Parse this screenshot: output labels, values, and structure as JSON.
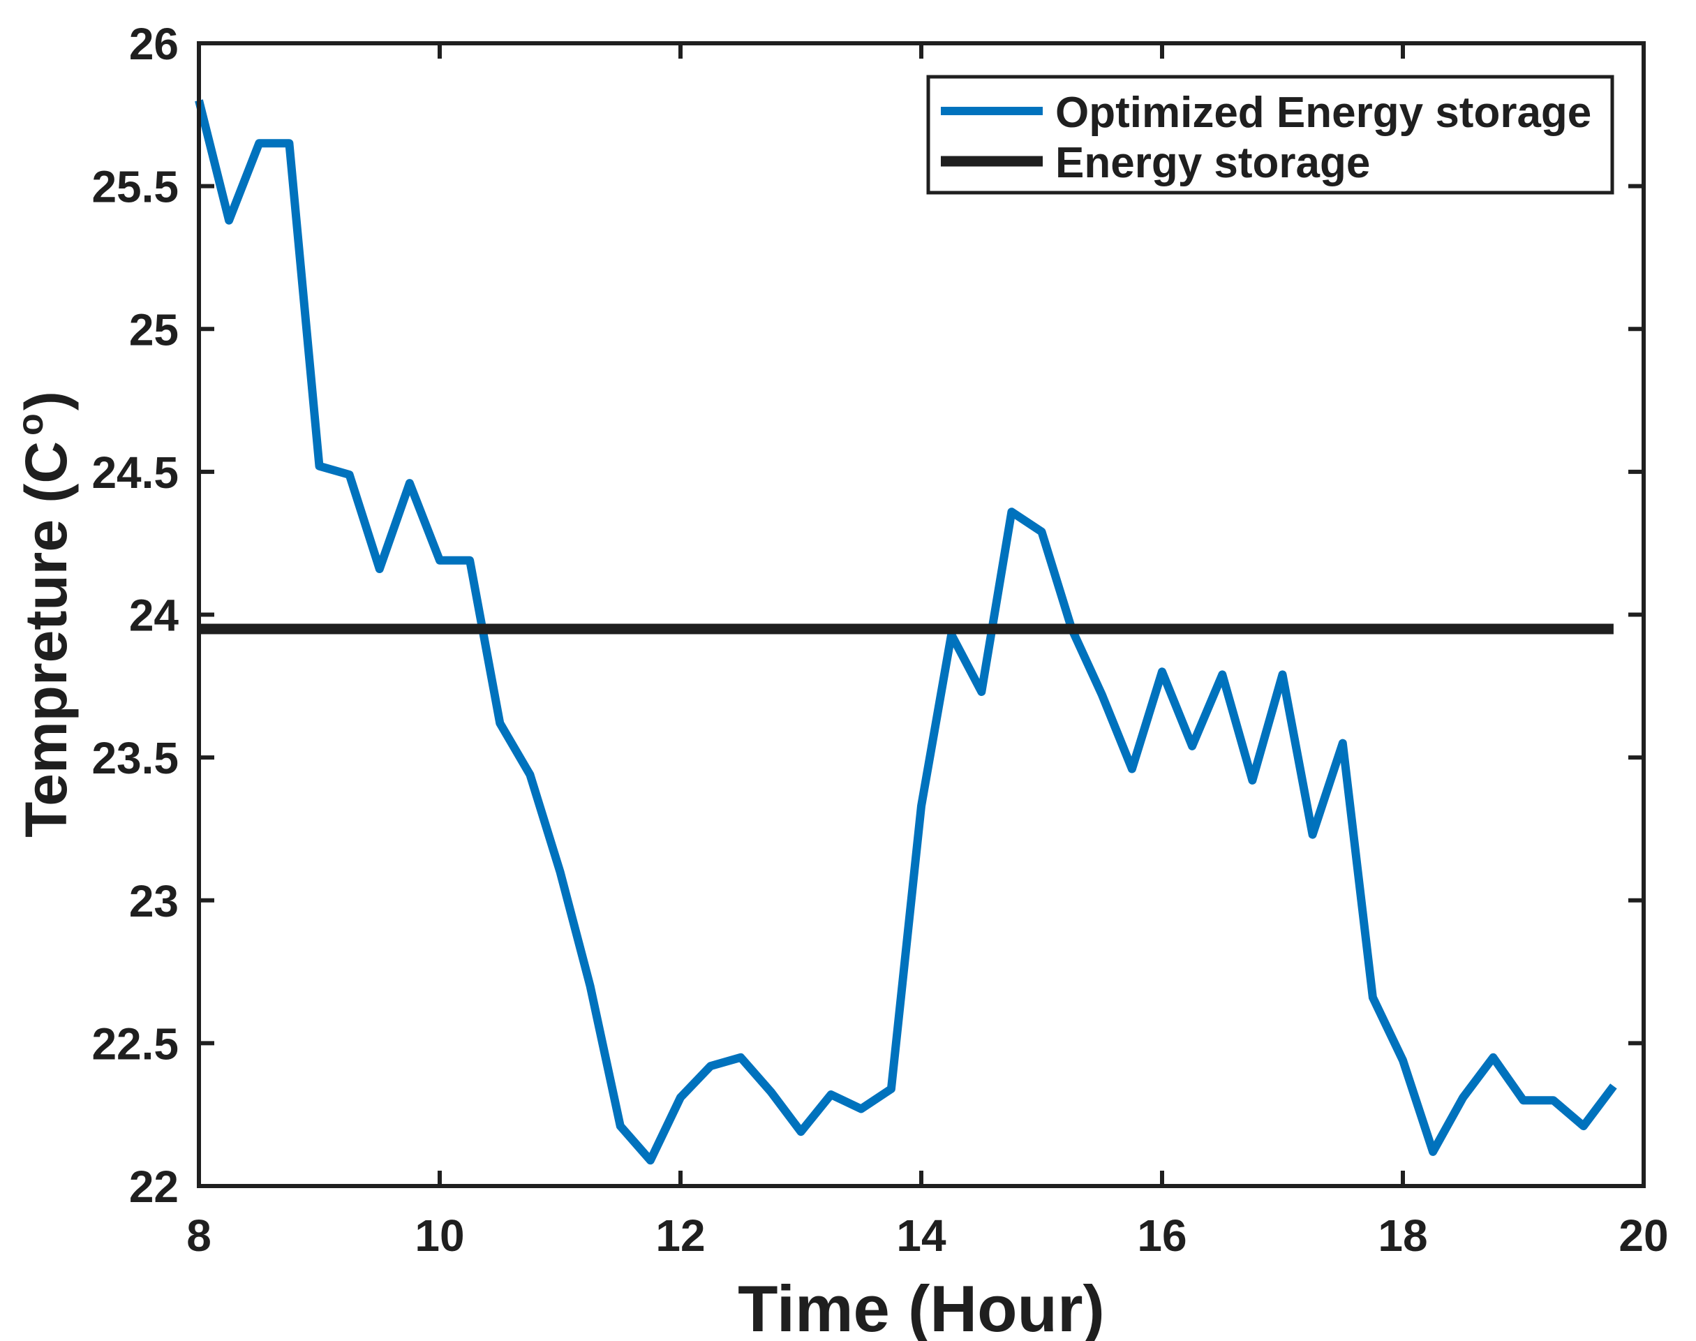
{
  "figure": {
    "background": "#ffffff",
    "axis_color": "#1f1f1f"
  },
  "chart_data": {
    "type": "line",
    "title": "",
    "xlabel": "Time (Hour)",
    "ylabel_main": "Tempreture (C",
    "ylabel_superscript": "o",
    "ylabel_suffix": ")",
    "xlim": [
      8,
      20
    ],
    "ylim": [
      22,
      26
    ],
    "grid": false,
    "legend_position": "top-right",
    "xticks": {
      "values": [
        8,
        10,
        12,
        14,
        16,
        18,
        20
      ],
      "labels": [
        "8",
        "10",
        "12",
        "14",
        "16",
        "18",
        "20"
      ]
    },
    "yticks": {
      "values": [
        22,
        22.5,
        23,
        23.5,
        24,
        24.5,
        25,
        25.5,
        26
      ],
      "labels": [
        "22",
        "22.5",
        "23",
        "23.5",
        "24",
        "24.5",
        "25",
        "25.5",
        "26"
      ]
    },
    "x": [
      8.0,
      8.25,
      8.5,
      8.75,
      9.0,
      9.25,
      9.5,
      9.75,
      10.0,
      10.25,
      10.5,
      10.75,
      11.0,
      11.25,
      11.5,
      11.75,
      12.0,
      12.25,
      12.5,
      12.75,
      13.0,
      13.25,
      13.5,
      13.75,
      14.0,
      14.25,
      14.5,
      14.75,
      15.0,
      15.25,
      15.5,
      15.75,
      16.0,
      16.25,
      16.5,
      16.75,
      17.0,
      17.25,
      17.5,
      17.75,
      18.0,
      18.25,
      18.5,
      18.75,
      19.0,
      19.25,
      19.5,
      19.75
    ],
    "series": [
      {
        "name": "Optimized Energy storage",
        "color": "#0072BD",
        "line_width": 12,
        "values": [
          25.8,
          25.38,
          25.65,
          25.65,
          24.52,
          24.49,
          24.16,
          24.46,
          24.19,
          24.19,
          23.62,
          23.44,
          23.1,
          22.7,
          22.21,
          22.09,
          22.31,
          22.42,
          22.45,
          22.33,
          22.19,
          22.32,
          22.27,
          22.34,
          23.33,
          23.93,
          23.73,
          24.36,
          24.29,
          23.95,
          23.72,
          23.46,
          23.8,
          23.54,
          23.79,
          23.42,
          23.79,
          23.23,
          23.55,
          22.66,
          22.44,
          22.12,
          22.31,
          22.45,
          22.3,
          22.3,
          22.21,
          22.35
        ]
      },
      {
        "name": "Energy storage",
        "color": "#1f1f1f",
        "line_width": 15,
        "values": [
          23.95,
          23.95,
          23.95,
          23.95,
          23.95,
          23.95,
          23.95,
          23.95,
          23.95,
          23.95,
          23.95,
          23.95,
          23.95,
          23.95,
          23.95,
          23.95,
          23.95,
          23.95,
          23.95,
          23.95,
          23.95,
          23.95,
          23.95,
          23.95,
          23.95,
          23.95,
          23.95,
          23.95,
          23.95,
          23.95,
          23.95,
          23.95,
          23.95,
          23.95,
          23.95,
          23.95,
          23.95,
          23.95,
          23.95,
          23.95,
          23.95,
          23.95,
          23.95,
          23.95,
          23.95,
          23.95,
          23.95,
          23.95
        ]
      }
    ]
  }
}
